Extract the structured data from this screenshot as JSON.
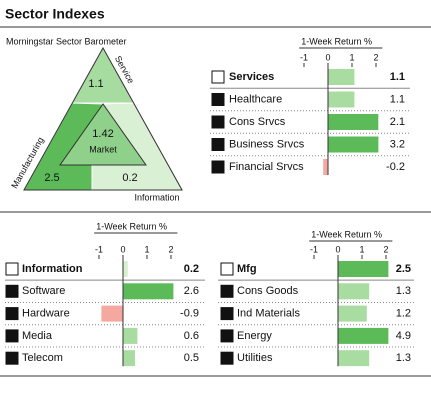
{
  "title": "Sector Indexes",
  "barometer": {
    "title": "Morningstar Sector Barometer",
    "service": {
      "label": "Service",
      "value": 1.1
    },
    "market": {
      "label": "Market",
      "value": 1.42
    },
    "manufacturing": {
      "label": "Manufacturing",
      "value": 2.5
    },
    "information": {
      "label": "Information",
      "value": 0.2
    }
  },
  "panels": [
    {
      "axis_title": "1-Week Return %",
      "xlim": [
        -1.2,
        2.1
      ],
      "xticks": [
        -1,
        0,
        1,
        2
      ],
      "header": {
        "name": "Services",
        "value": 1.1,
        "color": "#a8dca0"
      },
      "rows": [
        {
          "name": "Healthcare",
          "value": 1.1,
          "color": "#a8dca0"
        },
        {
          "name": "Cons Srvcs",
          "value": 2.1,
          "color": "#5cbb58"
        },
        {
          "name": "Business Srvcs",
          "value": 3.2,
          "color": "#5cbb58"
        },
        {
          "name": "Financial Srvcs",
          "value": -0.2,
          "color": "#f4a8a0"
        }
      ]
    },
    {
      "axis_title": "1-Week Return %",
      "xlim": [
        -1.2,
        2.1
      ],
      "xticks": [
        -1,
        0,
        1,
        2
      ],
      "header": {
        "name": "Information",
        "value": 0.2,
        "color": "#d6f0d0"
      },
      "rows": [
        {
          "name": "Software",
          "value": 2.6,
          "color": "#5cbb58"
        },
        {
          "name": "Hardware",
          "value": -0.9,
          "color": "#f4a8a0"
        },
        {
          "name": "Media",
          "value": 0.6,
          "color": "#a8dca0"
        },
        {
          "name": "Telecom",
          "value": 0.5,
          "color": "#a8dca0"
        }
      ]
    },
    {
      "axis_title": "1-Week Return %",
      "xlim": [
        -1.2,
        2.1
      ],
      "xticks": [
        -1,
        0,
        1,
        2
      ],
      "header": {
        "name": "Mfg",
        "value": 2.5,
        "color": "#5cbb58"
      },
      "rows": [
        {
          "name": "Cons Goods",
          "value": 1.3,
          "color": "#a8dca0"
        },
        {
          "name": "Ind Materials",
          "value": 1.2,
          "color": "#a8dca0"
        },
        {
          "name": "Energy",
          "value": 4.9,
          "color": "#5cbb58"
        },
        {
          "name": "Utilities",
          "value": 1.3,
          "color": "#a8dca0"
        }
      ]
    }
  ]
}
